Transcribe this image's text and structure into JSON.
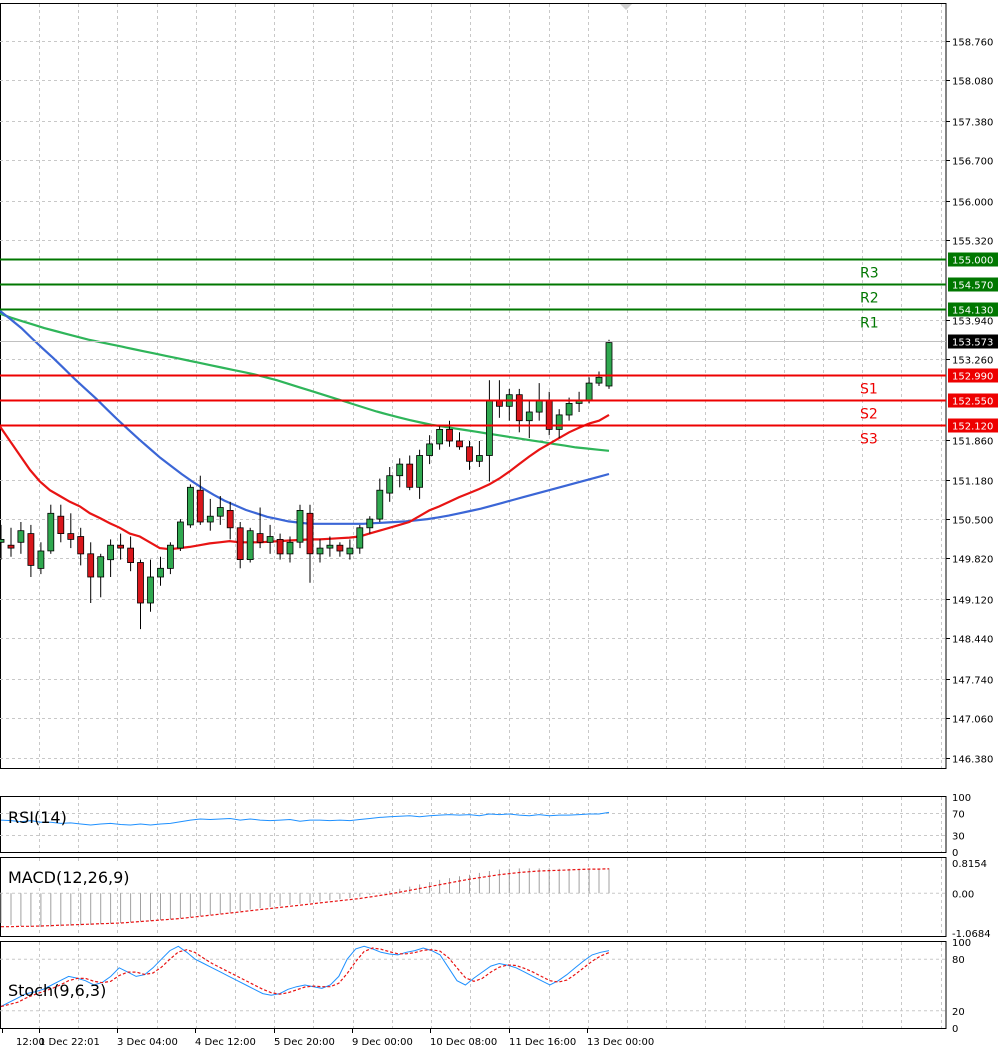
{
  "chart_data": [
    {
      "type": "candlestick",
      "ylim": [
        146.2,
        159.4
      ],
      "y_ticks": [
        "158.760",
        "158.080",
        "157.380",
        "156.700",
        "156.000",
        "155.320",
        "153.940",
        "153.260",
        "151.860",
        "151.180",
        "150.500",
        "149.820",
        "149.120",
        "148.440",
        "147.740",
        "147.060",
        "146.380"
      ],
      "x_ticks": [
        "12:00",
        "1 Dec 22:01",
        "3 Dec 04:00",
        "4 Dec 12:00",
        "5 Dec 20:00",
        "9 Dec 00:00",
        "10 Dec 08:00",
        "11 Dec 16:00",
        "13 Dec 00:00"
      ],
      "current_price": "153.573",
      "levels": [
        {
          "name": "R3",
          "value": "155.000",
          "color": "#007700"
        },
        {
          "name": "R2",
          "value": "154.570",
          "color": "#007700"
        },
        {
          "name": "R1",
          "value": "154.130",
          "color": "#007700"
        },
        {
          "name": "S1",
          "value": "152.990",
          "color": "#ee0000"
        },
        {
          "name": "S2",
          "value": "152.550",
          "color": "#ee0000"
        },
        {
          "name": "S3",
          "value": "152.120",
          "color": "#ee0000"
        }
      ],
      "candles": [
        {
          "o": 150.1,
          "h": 150.4,
          "l": 149.8,
          "c": 150.15
        },
        {
          "o": 150.05,
          "h": 150.35,
          "l": 149.85,
          "c": 150.0
        },
        {
          "o": 150.1,
          "h": 150.45,
          "l": 149.9,
          "c": 150.3
        },
        {
          "o": 150.25,
          "h": 150.4,
          "l": 149.5,
          "c": 149.7
        },
        {
          "o": 149.65,
          "h": 150.1,
          "l": 149.55,
          "c": 149.95
        },
        {
          "o": 149.95,
          "h": 150.75,
          "l": 149.9,
          "c": 150.6
        },
        {
          "o": 150.55,
          "h": 150.75,
          "l": 150.1,
          "c": 150.25
        },
        {
          "o": 150.25,
          "h": 150.6,
          "l": 150.0,
          "c": 150.15
        },
        {
          "o": 150.2,
          "h": 150.35,
          "l": 149.7,
          "c": 149.9
        },
        {
          "o": 149.9,
          "h": 150.1,
          "l": 149.05,
          "c": 149.5
        },
        {
          "o": 149.5,
          "h": 149.9,
          "l": 149.15,
          "c": 149.85
        },
        {
          "o": 149.8,
          "h": 150.15,
          "l": 149.5,
          "c": 150.05
        },
        {
          "o": 150.05,
          "h": 150.25,
          "l": 149.8,
          "c": 150.0
        },
        {
          "o": 150.0,
          "h": 150.2,
          "l": 149.6,
          "c": 149.75
        },
        {
          "o": 149.75,
          "h": 149.8,
          "l": 148.6,
          "c": 149.05
        },
        {
          "o": 149.05,
          "h": 149.8,
          "l": 148.9,
          "c": 149.5
        },
        {
          "o": 149.5,
          "h": 149.85,
          "l": 149.35,
          "c": 149.65
        },
        {
          "o": 149.65,
          "h": 150.1,
          "l": 149.55,
          "c": 150.05
        },
        {
          "o": 150.0,
          "h": 150.5,
          "l": 149.95,
          "c": 150.45
        },
        {
          "o": 150.4,
          "h": 151.1,
          "l": 150.35,
          "c": 151.05
        },
        {
          "o": 151.0,
          "h": 151.25,
          "l": 150.4,
          "c": 150.45
        },
        {
          "o": 150.45,
          "h": 150.85,
          "l": 150.3,
          "c": 150.55
        },
        {
          "o": 150.55,
          "h": 150.9,
          "l": 150.4,
          "c": 150.7
        },
        {
          "o": 150.65,
          "h": 150.8,
          "l": 150.15,
          "c": 150.35
        },
        {
          "o": 150.35,
          "h": 150.45,
          "l": 149.65,
          "c": 149.8
        },
        {
          "o": 149.8,
          "h": 150.35,
          "l": 149.75,
          "c": 150.3
        },
        {
          "o": 150.25,
          "h": 150.7,
          "l": 150.0,
          "c": 150.1
        },
        {
          "o": 150.1,
          "h": 150.4,
          "l": 149.9,
          "c": 150.2
        },
        {
          "o": 150.15,
          "h": 150.25,
          "l": 149.8,
          "c": 149.9
        },
        {
          "o": 149.9,
          "h": 150.2,
          "l": 149.75,
          "c": 150.1
        },
        {
          "o": 150.1,
          "h": 150.75,
          "l": 150.0,
          "c": 150.65
        },
        {
          "o": 150.6,
          "h": 150.75,
          "l": 149.4,
          "c": 149.9
        },
        {
          "o": 149.9,
          "h": 150.15,
          "l": 149.75,
          "c": 150.0
        },
        {
          "o": 150.0,
          "h": 150.2,
          "l": 149.85,
          "c": 150.05
        },
        {
          "o": 150.05,
          "h": 150.1,
          "l": 149.85,
          "c": 149.95
        },
        {
          "o": 149.9,
          "h": 150.15,
          "l": 149.8,
          "c": 150.0
        },
        {
          "o": 150.0,
          "h": 150.4,
          "l": 149.9,
          "c": 150.35
        },
        {
          "o": 150.35,
          "h": 150.55,
          "l": 150.25,
          "c": 150.5
        },
        {
          "o": 150.5,
          "h": 151.2,
          "l": 150.45,
          "c": 151.0
        },
        {
          "o": 150.95,
          "h": 151.4,
          "l": 150.8,
          "c": 151.25
        },
        {
          "o": 151.25,
          "h": 151.55,
          "l": 151.05,
          "c": 151.45
        },
        {
          "o": 151.45,
          "h": 151.6,
          "l": 151.0,
          "c": 151.05
        },
        {
          "o": 151.05,
          "h": 151.7,
          "l": 150.85,
          "c": 151.6
        },
        {
          "o": 151.6,
          "h": 151.95,
          "l": 151.45,
          "c": 151.8
        },
        {
          "o": 151.8,
          "h": 152.1,
          "l": 151.7,
          "c": 152.05
        },
        {
          "o": 152.05,
          "h": 152.2,
          "l": 151.75,
          "c": 151.85
        },
        {
          "o": 151.85,
          "h": 152.0,
          "l": 151.7,
          "c": 151.75
        },
        {
          "o": 151.75,
          "h": 151.85,
          "l": 151.35,
          "c": 151.5
        },
        {
          "o": 151.5,
          "h": 151.85,
          "l": 151.4,
          "c": 151.6
        },
        {
          "o": 151.6,
          "h": 152.9,
          "l": 151.15,
          "c": 152.55
        },
        {
          "o": 152.55,
          "h": 152.9,
          "l": 152.25,
          "c": 152.45
        },
        {
          "o": 152.45,
          "h": 152.75,
          "l": 152.2,
          "c": 152.65
        },
        {
          "o": 152.65,
          "h": 152.75,
          "l": 152.0,
          "c": 152.2
        },
        {
          "o": 152.2,
          "h": 152.55,
          "l": 151.9,
          "c": 152.35
        },
        {
          "o": 152.35,
          "h": 152.85,
          "l": 152.2,
          "c": 152.55
        },
        {
          "o": 152.55,
          "h": 152.7,
          "l": 151.95,
          "c": 152.05
        },
        {
          "o": 152.05,
          "h": 152.4,
          "l": 151.9,
          "c": 152.3
        },
        {
          "o": 152.3,
          "h": 152.6,
          "l": 152.2,
          "c": 152.5
        },
        {
          "o": 152.5,
          "h": 152.7,
          "l": 152.35,
          "c": 152.55
        },
        {
          "o": 152.55,
          "h": 152.95,
          "l": 152.5,
          "c": 152.85
        },
        {
          "o": 152.85,
          "h": 153.05,
          "l": 152.8,
          "c": 152.95
        },
        {
          "o": 152.8,
          "h": 153.6,
          "l": 152.75,
          "c": 153.55
        }
      ],
      "ma_red": [
        152.1,
        151.85,
        151.6,
        151.35,
        151.15,
        151.0,
        150.9,
        150.8,
        150.72,
        150.6,
        150.52,
        150.43,
        150.35,
        150.25,
        150.2,
        150.1,
        150.0,
        149.98,
        150.0,
        150.02,
        150.05,
        150.08,
        150.1,
        150.12,
        150.1,
        150.1,
        150.1,
        150.11,
        150.12,
        150.13,
        150.14,
        150.15,
        150.15,
        150.16,
        150.17,
        150.18,
        150.2,
        150.25,
        150.3,
        150.35,
        150.4,
        150.45,
        150.55,
        150.65,
        150.72,
        150.8,
        150.88,
        150.95,
        151.02,
        151.1,
        151.2,
        151.32,
        151.45,
        151.58,
        151.7,
        151.8,
        151.9,
        152.0,
        152.08,
        152.15,
        152.2,
        152.3
      ],
      "ma_blue": [
        154.1,
        153.95,
        153.8,
        153.62,
        153.45,
        153.28,
        153.1,
        152.92,
        152.75,
        152.58,
        152.4,
        152.22,
        152.05,
        151.88,
        151.72,
        151.56,
        151.42,
        151.28,
        151.15,
        151.03,
        150.92,
        150.82,
        150.74,
        150.66,
        150.6,
        150.54,
        150.5,
        150.46,
        150.44,
        150.42,
        150.42,
        150.42,
        150.42,
        150.42,
        150.42,
        150.43,
        150.44,
        150.45,
        150.46,
        150.48,
        150.5,
        150.53,
        150.56,
        150.6,
        150.64,
        150.68,
        150.73,
        150.78,
        150.83,
        150.88,
        150.93,
        150.98,
        151.03,
        151.08,
        151.13,
        151.18,
        151.23,
        151.28
      ],
      "ma_green": [
        154.05,
        153.98,
        153.92,
        153.86,
        153.8,
        153.75,
        153.7,
        153.65,
        153.6,
        153.56,
        153.52,
        153.48,
        153.44,
        153.4,
        153.36,
        153.32,
        153.28,
        153.24,
        153.2,
        153.16,
        153.12,
        153.08,
        153.04,
        153.0,
        152.95,
        152.9,
        152.84,
        152.78,
        152.72,
        152.66,
        152.6,
        152.54,
        152.48,
        152.42,
        152.36,
        152.31,
        152.26,
        152.21,
        152.17,
        152.13,
        152.1,
        152.07,
        152.04,
        152.01,
        151.98,
        151.95,
        151.92,
        151.89,
        151.86,
        151.83,
        151.8,
        151.77,
        151.74,
        151.72,
        151.7,
        151.68
      ]
    },
    {
      "type": "line",
      "title": "RSI(14)",
      "ylim": [
        0,
        100
      ],
      "y_ticks": [
        "100",
        "70",
        "30",
        "0"
      ],
      "levels": [
        70,
        30
      ],
      "values": [
        58,
        57,
        55,
        57,
        54,
        54,
        52,
        53,
        51,
        49,
        51,
        52,
        50,
        49,
        51,
        49,
        51,
        52,
        55,
        58,
        60,
        59,
        60,
        61,
        58,
        60,
        58,
        57,
        58,
        59,
        56,
        58,
        58,
        57,
        58,
        57,
        59,
        61,
        63,
        64,
        65,
        66,
        64,
        66,
        67,
        68,
        67,
        68,
        66,
        69,
        68,
        69,
        67,
        66,
        68,
        66,
        67,
        67,
        68,
        69,
        69,
        72
      ]
    },
    {
      "type": "bar",
      "title": "MACD(12,26,9)",
      "ylim": [
        -1.15,
        0.95
      ],
      "y_ticks": [
        "0.8154",
        "0.00",
        "-1.0684"
      ],
      "values": [
        -0.8,
        -0.85,
        -0.88,
        -0.9,
        -0.91,
        -0.9,
        -0.89,
        -0.87,
        -0.86,
        -0.85,
        -0.83,
        -0.82,
        -0.8,
        -0.78,
        -0.76,
        -0.74,
        -0.72,
        -0.7,
        -0.67,
        -0.64,
        -0.61,
        -0.58,
        -0.55,
        -0.52,
        -0.48,
        -0.44,
        -0.4,
        -0.37,
        -0.34,
        -0.31,
        -0.28,
        -0.25,
        -0.22,
        -0.19,
        -0.16,
        -0.13,
        -0.09,
        -0.05,
        0.0,
        0.06,
        0.12,
        0.18,
        0.24,
        0.3,
        0.36,
        0.41,
        0.46,
        0.5,
        0.55,
        0.6,
        0.64,
        0.66,
        0.67,
        0.67,
        0.67,
        0.67,
        0.66,
        0.66,
        0.66,
        0.67,
        0.67,
        0.67
      ],
      "signal": [
        -0.9,
        -0.9,
        -0.89,
        -0.89,
        -0.88,
        -0.87,
        -0.86,
        -0.85,
        -0.84,
        -0.83,
        -0.82,
        -0.81,
        -0.8,
        -0.78,
        -0.76,
        -0.74,
        -0.72,
        -0.7,
        -0.68,
        -0.65,
        -0.62,
        -0.59,
        -0.56,
        -0.53,
        -0.5,
        -0.47,
        -0.44,
        -0.41,
        -0.38,
        -0.35,
        -0.32,
        -0.29,
        -0.26,
        -0.23,
        -0.2,
        -0.17,
        -0.14,
        -0.1,
        -0.06,
        -0.02,
        0.03,
        0.08,
        0.13,
        0.18,
        0.23,
        0.28,
        0.33,
        0.38,
        0.42,
        0.46,
        0.5,
        0.53,
        0.56,
        0.58,
        0.6,
        0.61,
        0.62,
        0.63,
        0.64,
        0.65,
        0.65,
        0.66
      ]
    },
    {
      "type": "line",
      "title": "Stoch(9,6,3)",
      "ylim": [
        0,
        100
      ],
      "y_ticks": [
        "100",
        "80",
        "20",
        "0"
      ],
      "levels": [
        80,
        20
      ],
      "k": [
        25,
        30,
        35,
        40,
        42,
        45,
        50,
        55,
        60,
        58,
        55,
        50,
        53,
        60,
        70,
        65,
        60,
        62,
        70,
        80,
        90,
        95,
        88,
        80,
        75,
        70,
        65,
        60,
        55,
        50,
        45,
        40,
        38,
        40,
        45,
        48,
        50,
        48,
        46,
        50,
        60,
        80,
        92,
        95,
        92,
        88,
        86,
        85,
        88,
        90,
        93,
        90,
        85,
        70,
        55,
        50,
        58,
        65,
        72,
        75,
        73,
        70,
        65,
        60,
        55,
        50,
        55,
        62,
        70,
        78,
        85,
        88,
        90
      ]
    }
  ]
}
